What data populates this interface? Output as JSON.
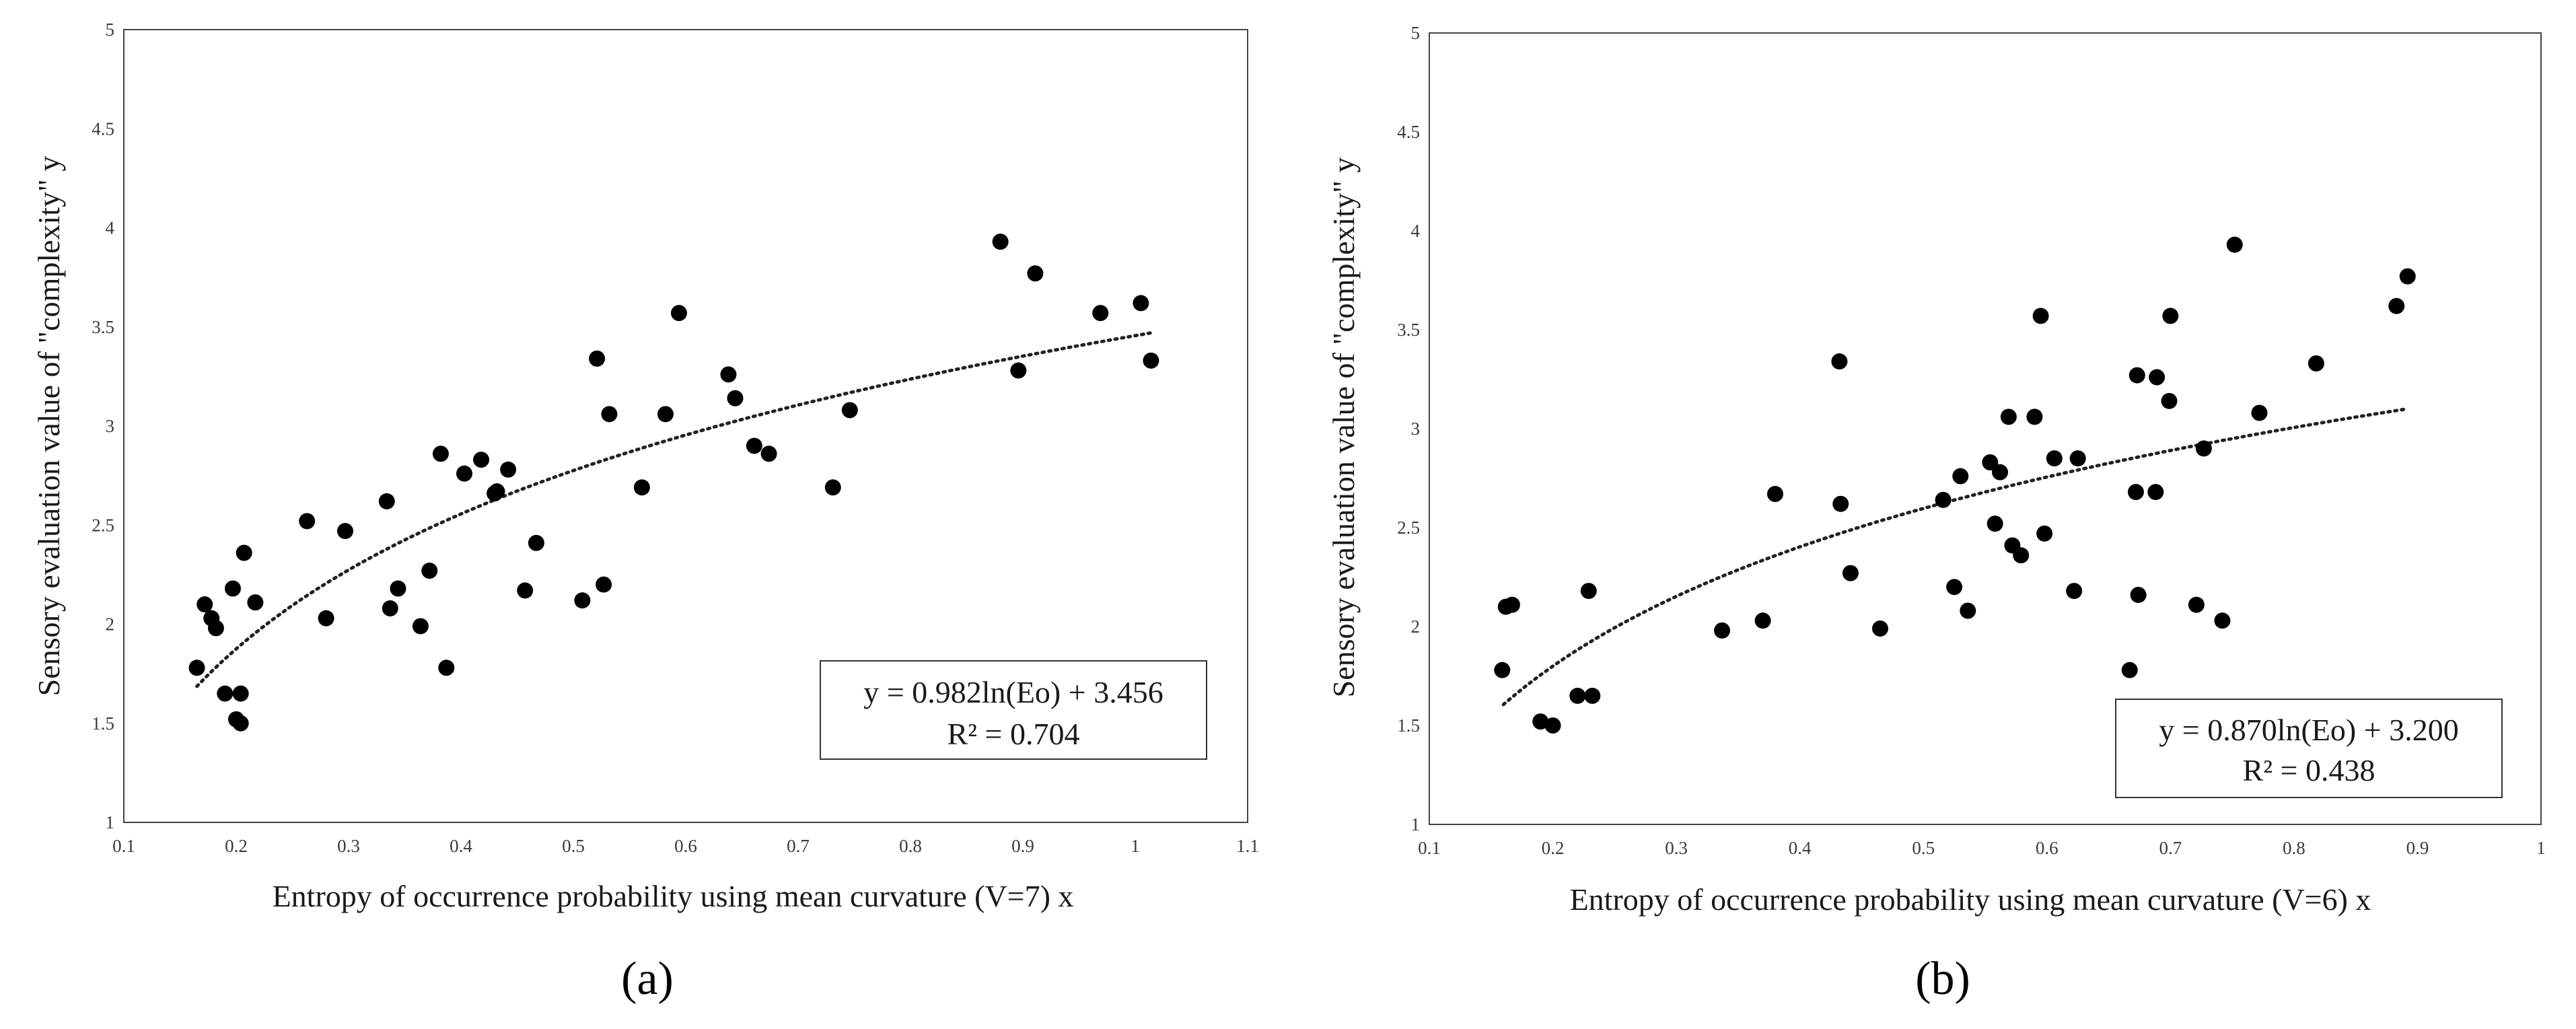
{
  "chart_data": [
    {
      "type": "scatter",
      "panel_label": "(a)",
      "xlabel": "Entropy of occurrence probability using mean curvature (V=7) x",
      "ylabel": "Sensory evaluation value of \"complexity\" y",
      "xlim": [
        0.1,
        1.1
      ],
      "ylim": [
        1,
        5
      ],
      "xticks": [
        0.1,
        0.2,
        0.3,
        0.4,
        0.5,
        0.6,
        0.7,
        0.8,
        0.9,
        1,
        1.1
      ],
      "xtick_labels": [
        "0.1",
        "0.2",
        "0.3",
        "0.4",
        "0.5",
        "0.6",
        "0.7",
        "0.8",
        "0.9",
        "1",
        "1.1"
      ],
      "yticks": [
        1,
        1.5,
        2,
        2.5,
        3,
        3.5,
        4,
        4.5,
        5
      ],
      "ytick_labels": [
        "1",
        "1.5",
        "2",
        "2.5",
        "3",
        "3.5",
        "4",
        "4.5",
        "5"
      ],
      "trendline": {
        "type": "log",
        "a": 0.982,
        "b": 3.456,
        "x_range": [
          0.165,
          1.015
        ]
      },
      "equation": "y = 0.982ln(Eo) + 3.456",
      "r2": "R² = 0.704",
      "points": [
        [
          0.165,
          1.78
        ],
        [
          0.172,
          2.1
        ],
        [
          0.178,
          2.03
        ],
        [
          0.182,
          1.98
        ],
        [
          0.19,
          1.65
        ],
        [
          0.197,
          2.18
        ],
        [
          0.2,
          1.52
        ],
        [
          0.204,
          1.5
        ],
        [
          0.204,
          1.65
        ],
        [
          0.207,
          2.36
        ],
        [
          0.217,
          2.11
        ],
        [
          0.263,
          2.52
        ],
        [
          0.28,
          2.03
        ],
        [
          0.297,
          2.47
        ],
        [
          0.334,
          2.62
        ],
        [
          0.337,
          2.08
        ],
        [
          0.344,
          2.18
        ],
        [
          0.364,
          1.99
        ],
        [
          0.372,
          2.27
        ],
        [
          0.382,
          2.86
        ],
        [
          0.387,
          1.78
        ],
        [
          0.403,
          2.76
        ],
        [
          0.418,
          2.83
        ],
        [
          0.43,
          2.66
        ],
        [
          0.432,
          2.67
        ],
        [
          0.442,
          2.78
        ],
        [
          0.457,
          2.17
        ],
        [
          0.467,
          2.41
        ],
        [
          0.508,
          2.12
        ],
        [
          0.521,
          3.34
        ],
        [
          0.527,
          2.2
        ],
        [
          0.532,
          3.06
        ],
        [
          0.561,
          2.69
        ],
        [
          0.582,
          3.06
        ],
        [
          0.594,
          3.57
        ],
        [
          0.638,
          3.26
        ],
        [
          0.644,
          3.14
        ],
        [
          0.661,
          2.9
        ],
        [
          0.674,
          2.86
        ],
        [
          0.731,
          2.69
        ],
        [
          0.746,
          3.08
        ],
        [
          0.88,
          3.93
        ],
        [
          0.896,
          3.28
        ],
        [
          0.911,
          3.77
        ],
        [
          0.969,
          3.57
        ],
        [
          1.005,
          3.62
        ],
        [
          1.014,
          3.33
        ]
      ]
    },
    {
      "type": "scatter",
      "panel_label": "(b)",
      "xlabel": "Entropy of occurrence probability using mean curvature (V=6) x",
      "ylabel": "Sensory evaluation value of \"complexity\" y",
      "xlim": [
        0.1,
        1.0
      ],
      "ylim": [
        1,
        5
      ],
      "xticks": [
        0.1,
        0.2,
        0.3,
        0.4,
        0.5,
        0.6,
        0.7,
        0.8,
        0.9,
        1
      ],
      "xtick_labels": [
        "0.1",
        "0.2",
        "0.3",
        "0.4",
        "0.5",
        "0.6",
        "0.7",
        "0.8",
        "0.9",
        "1"
      ],
      "yticks": [
        1,
        1.5,
        2,
        2.5,
        3,
        3.5,
        4,
        4.5,
        5
      ],
      "ytick_labels": [
        "1",
        "1.5",
        "2",
        "2.5",
        "3",
        "3.5",
        "4",
        "4.5",
        "5"
      ],
      "trendline": {
        "type": "log",
        "a": 0.87,
        "b": 3.2,
        "x_range": [
          0.16,
          0.89
        ]
      },
      "equation": "y = 0.870ln(Eo) + 3.200",
      "r2": "R² = 0.438",
      "points": [
        [
          0.159,
          1.78
        ],
        [
          0.162,
          2.1
        ],
        [
          0.167,
          2.11
        ],
        [
          0.19,
          1.52
        ],
        [
          0.2,
          1.5
        ],
        [
          0.22,
          1.65
        ],
        [
          0.229,
          2.18
        ],
        [
          0.232,
          1.65
        ],
        [
          0.337,
          1.98
        ],
        [
          0.37,
          2.03
        ],
        [
          0.38,
          2.67
        ],
        [
          0.432,
          3.34
        ],
        [
          0.433,
          2.62
        ],
        [
          0.441,
          2.27
        ],
        [
          0.465,
          1.99
        ],
        [
          0.516,
          2.64
        ],
        [
          0.525,
          2.2
        ],
        [
          0.53,
          2.76
        ],
        [
          0.536,
          2.08
        ],
        [
          0.554,
          2.83
        ],
        [
          0.558,
          2.52
        ],
        [
          0.562,
          2.78
        ],
        [
          0.569,
          3.06
        ],
        [
          0.572,
          2.41
        ],
        [
          0.579,
          2.36
        ],
        [
          0.59,
          3.06
        ],
        [
          0.595,
          3.57
        ],
        [
          0.598,
          2.47
        ],
        [
          0.606,
          2.85
        ],
        [
          0.622,
          2.18
        ],
        [
          0.625,
          2.85
        ],
        [
          0.667,
          1.78
        ],
        [
          0.672,
          2.68
        ],
        [
          0.673,
          3.27
        ],
        [
          0.674,
          2.16
        ],
        [
          0.688,
          2.68
        ],
        [
          0.689,
          3.26
        ],
        [
          0.699,
          3.14
        ],
        [
          0.7,
          3.57
        ],
        [
          0.721,
          2.11
        ],
        [
          0.727,
          2.9
        ],
        [
          0.742,
          2.03
        ],
        [
          0.752,
          3.93
        ],
        [
          0.772,
          3.08
        ],
        [
          0.818,
          3.33
        ],
        [
          0.883,
          3.62
        ],
        [
          0.892,
          3.77
        ]
      ]
    }
  ]
}
